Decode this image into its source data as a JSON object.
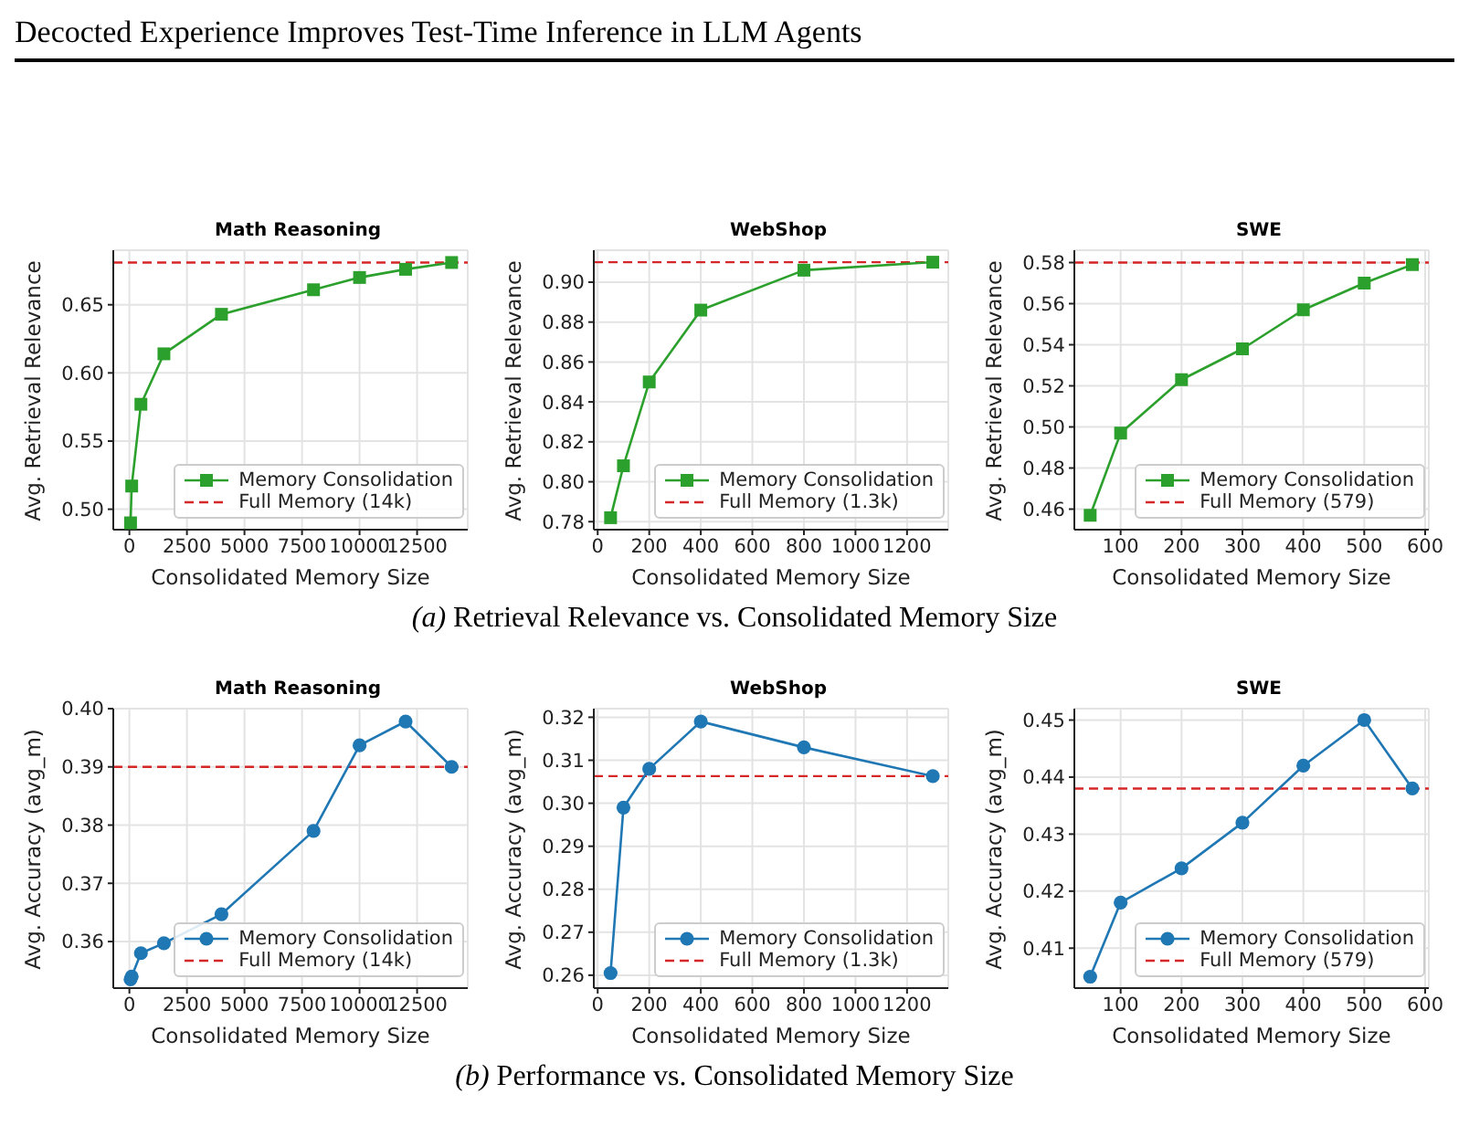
{
  "chart_data": [
    {
      "type": "line",
      "title": "Math Reasoning",
      "xlabel": "Consolidated Memory Size",
      "ylabel": "Avg. Retrieval Relevance",
      "annotations": [
        "Decocted Experience Improves Test-Time Inference in LLM Agents"
      ],
      "x": [
        50,
        100,
        500,
        1500,
        4000,
        8000,
        10000,
        12000,
        14000
      ],
      "series": [
        {
          "name": "Memory Consolidation",
          "color": "#2ca02c",
          "values": [
            0.49,
            0.517,
            0.577,
            0.614,
            0.643,
            0.661,
            0.67,
            0.676,
            0.681
          ]
        }
      ],
      "ref_lines": [
        {
          "axis": "y",
          "value": 0.681,
          "label": "Full Memory (14k)",
          "color": "#d62728",
          "line_style": "dashed"
        }
      ],
      "xlim": [
        -700,
        14700
      ],
      "xticks": [
        0,
        2500,
        5000,
        7500,
        10000,
        12500
      ],
      "ylim": [
        0.485,
        0.69
      ],
      "yticks": [
        {
          "value": 0.5,
          "label": "0.50"
        },
        0.55,
        {
          "value": 0.6,
          "label": "0.60"
        },
        0.65
      ],
      "grid": true,
      "legend": "bottom right",
      "marker": "square",
      "line_style": "solid"
    },
    {
      "type": "line",
      "title": "WebShop",
      "xlabel": "Consolidated Memory Size",
      "ylabel": "Avg. Retrieval Relevance",
      "annotations": [
        "(a) Retrieval Relevance vs. Consolidated Memory Size"
      ],
      "x": [
        50,
        100,
        200,
        400,
        800,
        1300
      ],
      "series": [
        {
          "name": "Memory Consolidation",
          "color": "#2ca02c",
          "values": [
            0.782,
            0.808,
            0.85,
            0.886,
            0.906,
            0.91
          ]
        }
      ],
      "ref_lines": [
        {
          "axis": "y",
          "value": 0.91,
          "label": "Full Memory (1.3k)",
          "color": "#d62728",
          "line_style": "dashed"
        }
      ],
      "xlim": [
        -15,
        1360
      ],
      "xticks": [
        0,
        200,
        400,
        600,
        800,
        1000,
        1200
      ],
      "ylim": [
        0.776,
        0.916
      ],
      "yticks": [
        0.78,
        {
          "value": 0.8,
          "label": "0.80"
        },
        0.82,
        0.84,
        0.86,
        0.88,
        {
          "value": 0.9,
          "label": "0.90"
        }
      ],
      "grid": true,
      "legend": "bottom right",
      "marker": "square",
      "line_style": "solid"
    },
    {
      "type": "line",
      "title": "SWE",
      "xlabel": "Consolidated Memory Size",
      "ylabel": "Avg. Retrieval Relevance",
      "x": [
        50,
        100,
        200,
        300,
        400,
        500,
        579
      ],
      "series": [
        {
          "name": "Memory Consolidation",
          "color": "#2ca02c",
          "values": [
            0.457,
            0.497,
            0.523,
            0.538,
            0.557,
            0.57,
            0.579
          ]
        }
      ],
      "ref_lines": [
        {
          "axis": "y",
          "value": 0.58,
          "label": "Full Memory (579)",
          "color": "#d62728",
          "line_style": "dashed"
        }
      ],
      "xlim": [
        24,
        606
      ],
      "xticks": [
        100,
        200,
        300,
        400,
        500,
        600
      ],
      "ylim": [
        0.45,
        0.586
      ],
      "yticks": [
        0.46,
        0.48,
        {
          "value": 0.5,
          "label": "0.50"
        },
        0.52,
        0.54,
        0.56,
        0.58
      ],
      "grid": true,
      "legend": "bottom right",
      "marker": "square",
      "line_style": "solid"
    },
    {
      "type": "line",
      "title": "Math Reasoning",
      "xlabel": "Consolidated Memory Size",
      "ylabel": "Avg. Accuracy (avg_m)",
      "x": [
        50,
        100,
        500,
        1500,
        4000,
        8000,
        10000,
        12000,
        14000
      ],
      "series": [
        {
          "name": "Memory Consolidation",
          "color": "#1f77b4",
          "values": [
            0.3535,
            0.354,
            0.358,
            0.3597,
            0.3647,
            0.379,
            0.3937,
            0.3978,
            0.39
          ]
        }
      ],
      "ref_lines": [
        {
          "axis": "y",
          "value": 0.39,
          "label": "Full Memory (14k)",
          "color": "#d62728",
          "line_style": "dashed"
        }
      ],
      "xlim": [
        -700,
        14700
      ],
      "xticks": [
        0,
        2500,
        5000,
        7500,
        10000,
        12500
      ],
      "ylim": [
        0.352,
        0.4
      ],
      "yticks": [
        0.36,
        0.37,
        0.38,
        0.39,
        {
          "value": 0.4,
          "label": "0.40"
        }
      ],
      "grid": true,
      "legend": "bottom right",
      "marker": "circle",
      "line_style": "solid"
    },
    {
      "type": "line",
      "title": "WebShop",
      "xlabel": "Consolidated Memory Size",
      "ylabel": "Avg. Accuracy (avg_m)",
      "annotations": [
        "(b) Performance vs. Consolidated Memory Size"
      ],
      "x": [
        50,
        100,
        200,
        400,
        800,
        1300
      ],
      "series": [
        {
          "name": "Memory Consolidation",
          "color": "#1f77b4",
          "values": [
            0.2605,
            0.299,
            0.308,
            0.319,
            0.313,
            0.3063
          ]
        }
      ],
      "ref_lines": [
        {
          "axis": "y",
          "value": 0.3063,
          "label": "Full Memory (1.3k)",
          "color": "#d62728",
          "line_style": "dashed"
        }
      ],
      "xlim": [
        -15,
        1360
      ],
      "xticks": [
        0,
        200,
        400,
        600,
        800,
        1000,
        1200
      ],
      "ylim": [
        0.257,
        0.322
      ],
      "yticks": [
        0.26,
        0.27,
        0.28,
        0.29,
        {
          "value": 0.3,
          "label": "0.30"
        },
        0.31,
        0.32
      ],
      "grid": true,
      "legend": "bottom right",
      "marker": "circle",
      "line_style": "solid"
    },
    {
      "type": "line",
      "title": "SWE",
      "xlabel": "Consolidated Memory Size",
      "ylabel": "Avg. Accuracy (avg_m)",
      "x": [
        50,
        100,
        200,
        300,
        400,
        500,
        579
      ],
      "series": [
        {
          "name": "Memory Consolidation",
          "color": "#1f77b4",
          "values": [
            0.405,
            0.418,
            0.424,
            0.432,
            0.442,
            0.45,
            0.438
          ]
        }
      ],
      "ref_lines": [
        {
          "axis": "y",
          "value": 0.438,
          "label": "Full Memory (579)",
          "color": "#d62728",
          "line_style": "dashed"
        }
      ],
      "xlim": [
        24,
        606
      ],
      "xticks": [
        100,
        200,
        300,
        400,
        500,
        600
      ],
      "ylim": [
        0.403,
        0.452
      ],
      "yticks": [
        0.41,
        0.42,
        0.43,
        0.44,
        0.45
      ],
      "grid": true,
      "legend": "bottom right",
      "marker": "circle",
      "line_style": "solid"
    }
  ]
}
